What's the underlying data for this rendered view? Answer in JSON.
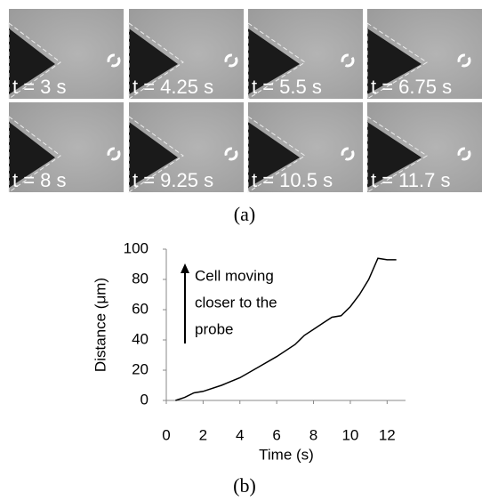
{
  "panel_a": {
    "frames": [
      "t = 3 s",
      "t = 4.25 s",
      "t = 5.5 s",
      "t = 6.75 s",
      "t = 8 s",
      "t = 9.25 s",
      "t = 10.5 s",
      "t = 11.7 s"
    ],
    "caption": "(a)"
  },
  "chart_data": {
    "type": "line",
    "xlabel": "Time (s)",
    "ylabel": "Distance (μm)",
    "annotation": [
      "Cell moving",
      "closer  to the",
      "probe"
    ],
    "x": [
      0.5,
      1,
      1.5,
      2,
      3,
      4,
      5,
      6,
      7,
      7.5,
      8,
      8.5,
      9,
      9.5,
      10,
      10.5,
      11,
      11.5,
      12,
      12.5
    ],
    "series": [
      {
        "color": "#000000",
        "values": [
          0,
          2,
          5,
          6,
          10,
          15,
          22,
          29,
          37,
          43,
          47,
          51,
          55,
          56,
          62,
          70,
          80,
          94,
          93,
          93
        ]
      }
    ],
    "xlim": [
      0,
      13
    ],
    "xticks": [
      0,
      2,
      4,
      6,
      8,
      10,
      12
    ],
    "ylim": [
      0,
      100
    ],
    "yticks": [
      0,
      20,
      40,
      60,
      80,
      100
    ]
  },
  "caption_b": "(b)"
}
